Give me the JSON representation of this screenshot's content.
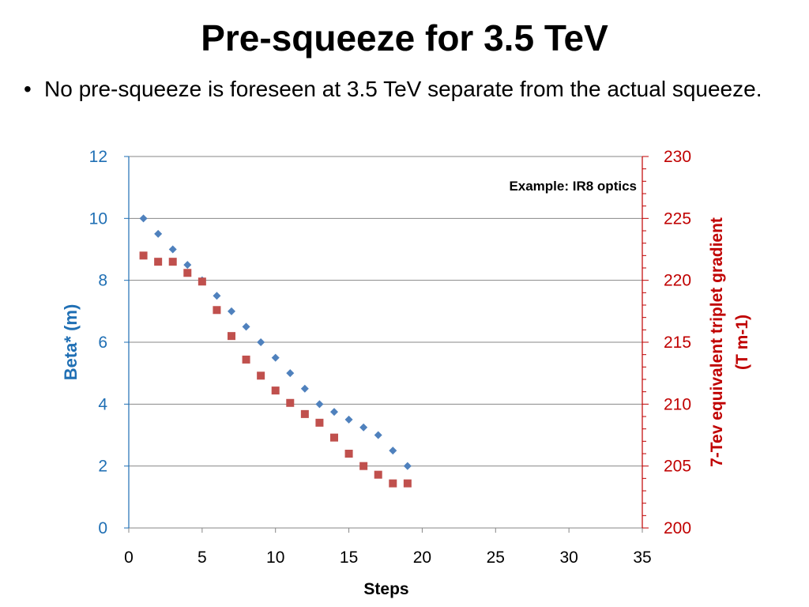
{
  "slide": {
    "title": "Pre-squeeze for 3.5 TeV",
    "bullet_symbol": "•",
    "bullet": "No pre-squeeze is foreseen at 3.5 TeV separate from the actual squeeze."
  },
  "chart_data": {
    "type": "scatter",
    "xlabel": "Steps",
    "ylabel": "Beta* (m)",
    "y2label_line1": "7-Tev equivalent triplet  gradient",
    "y2label_line2": "(T m-1)",
    "annotation": "Example: IR8 optics",
    "xlim": [
      0,
      35
    ],
    "ylim": [
      0,
      12
    ],
    "y2lim": [
      200,
      230
    ],
    "x_ticks": [
      0,
      5,
      10,
      15,
      20,
      25,
      30,
      35
    ],
    "y_ticks": [
      0,
      2,
      4,
      6,
      8,
      10,
      12
    ],
    "y2_ticks": [
      200,
      205,
      210,
      215,
      220,
      225,
      230
    ],
    "grid": "horizontal",
    "colors": {
      "left_axis": "#1f6fb4",
      "right_axis": "#c00000",
      "series1": "#4f81bd",
      "series2": "#c0504d",
      "grid": "#878787"
    },
    "series": [
      {
        "axis": "left",
        "marker": "diamond",
        "x": [
          1,
          2,
          3,
          4,
          5,
          6,
          7,
          8,
          9,
          10,
          11,
          12,
          13,
          14,
          15,
          16,
          17,
          18,
          19
        ],
        "y": [
          10,
          9.5,
          9,
          8.5,
          8,
          7.5,
          7,
          6.5,
          6,
          5.5,
          5,
          4.5,
          4,
          3.75,
          3.5,
          3.25,
          3,
          2.5,
          2
        ]
      },
      {
        "axis": "right",
        "marker": "square",
        "x": [
          1,
          2,
          3,
          4,
          5,
          6,
          7,
          8,
          9,
          10,
          11,
          12,
          13,
          14,
          15,
          16,
          17,
          18,
          19
        ],
        "y": [
          222,
          221.5,
          221.5,
          220.6,
          219.9,
          217.6,
          215.5,
          213.6,
          212.3,
          211.1,
          210.1,
          209.2,
          208.5,
          207.3,
          206,
          205,
          204.3,
          203.6,
          203.6
        ]
      }
    ]
  }
}
